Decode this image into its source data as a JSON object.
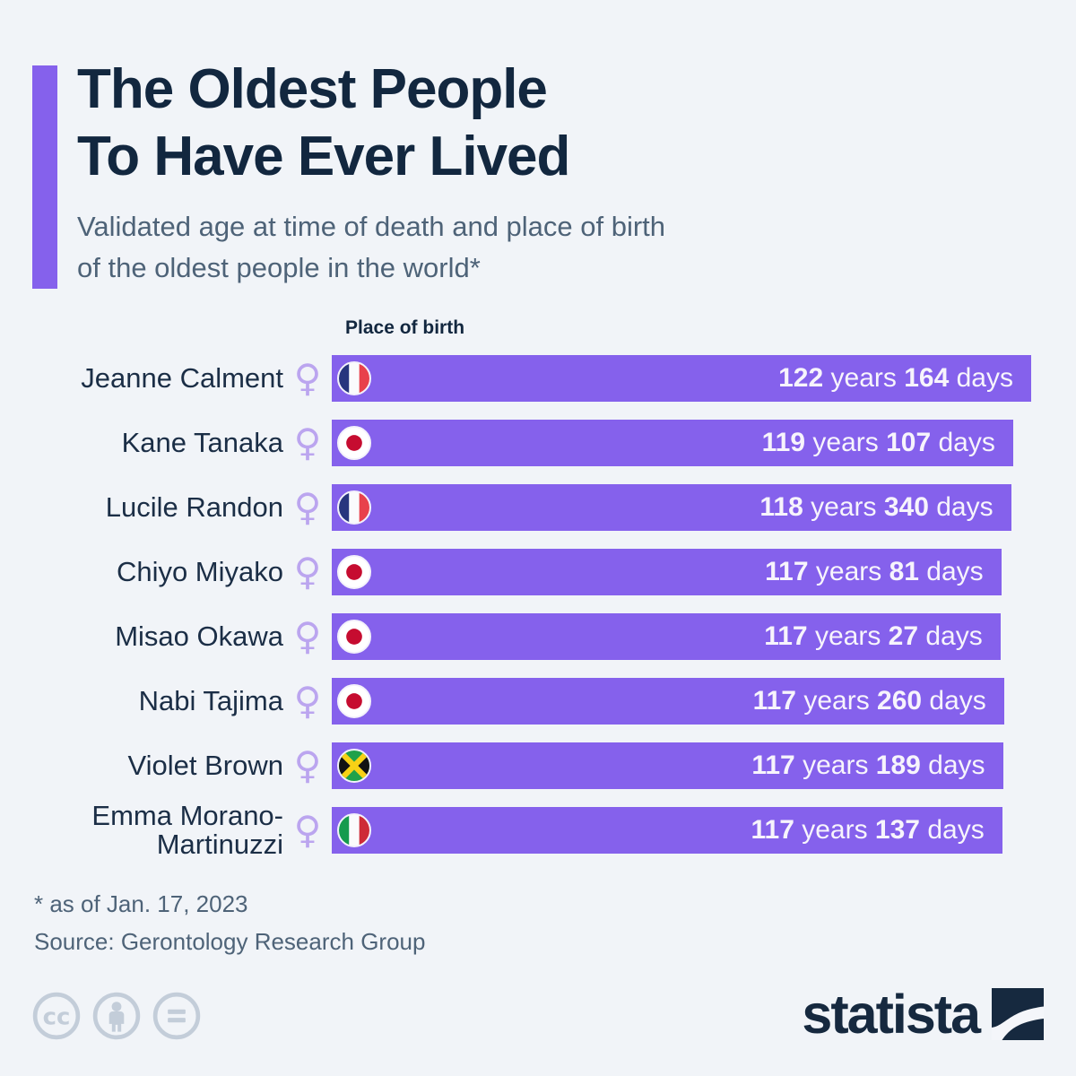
{
  "colors": {
    "background": "#F1F4F8",
    "accent_purple": "#8561EC",
    "bar_purple": "#8561EC",
    "title_navy": "#12273F",
    "subtitle_gray": "#4E6378",
    "female_symbol_lavender": "#BBA5EF",
    "bar_text": "#F7F4FC",
    "license_icon_gray": "#C3CDD9",
    "logo_navy": "#16293F"
  },
  "header": {
    "title_line1": "The Oldest People",
    "title_line2": "To Have Ever Lived",
    "subtitle_line1": "Validated age at time of death and place of birth",
    "subtitle_line2": "of the oldest people in the world*"
  },
  "chart_data": {
    "type": "bar",
    "orientation": "horizontal",
    "title": "The Oldest People To Have Ever Lived",
    "column_header": "Place of birth",
    "x_axis": "validated age at death",
    "xlim_years": [
      0,
      122.449
    ],
    "gender_symbol": "♀",
    "labels": {
      "years": "years",
      "days": "days"
    },
    "rows": [
      {
        "name": "Jeanne Calment",
        "name_lines": [
          "Jeanne Calment"
        ],
        "gender": "female",
        "place_of_birth": "France",
        "flag": "france",
        "years": 122,
        "days": 164
      },
      {
        "name": "Kane Tanaka",
        "name_lines": [
          "Kane Tanaka"
        ],
        "gender": "female",
        "place_of_birth": "Japan",
        "flag": "japan",
        "years": 119,
        "days": 107
      },
      {
        "name": "Lucile Randon",
        "name_lines": [
          "Lucile Randon"
        ],
        "gender": "female",
        "place_of_birth": "France",
        "flag": "france",
        "years": 118,
        "days": 340
      },
      {
        "name": "Chiyo Miyako",
        "name_lines": [
          "Chiyo Miyako"
        ],
        "gender": "female",
        "place_of_birth": "Japan",
        "flag": "japan",
        "years": 117,
        "days": 81
      },
      {
        "name": "Misao Okawa",
        "name_lines": [
          "Misao Okawa"
        ],
        "gender": "female",
        "place_of_birth": "Japan",
        "flag": "japan",
        "years": 117,
        "days": 27
      },
      {
        "name": "Nabi Tajima",
        "name_lines": [
          "Nabi Tajima"
        ],
        "gender": "female",
        "place_of_birth": "Japan",
        "flag": "japan",
        "years": 117,
        "days": 260
      },
      {
        "name": "Violet Brown",
        "name_lines": [
          "Violet Brown"
        ],
        "gender": "female",
        "place_of_birth": "Jamaica",
        "flag": "jamaica",
        "years": 117,
        "days": 189
      },
      {
        "name": "Emma Morano-Martinuzzi",
        "name_lines": [
          "Emma Morano-",
          "Martinuzzi"
        ],
        "gender": "female",
        "place_of_birth": "Italy",
        "flag": "italy",
        "years": 117,
        "days": 137
      }
    ]
  },
  "footer": {
    "note": "* as of Jan. 17, 2023",
    "source": "Source: Gerontology Research Group"
  },
  "branding": {
    "logo_text": "statista"
  },
  "license": {
    "icons": [
      "cc-icon",
      "attribution-icon",
      "no-derivatives-icon"
    ],
    "cc_text": "cc"
  }
}
